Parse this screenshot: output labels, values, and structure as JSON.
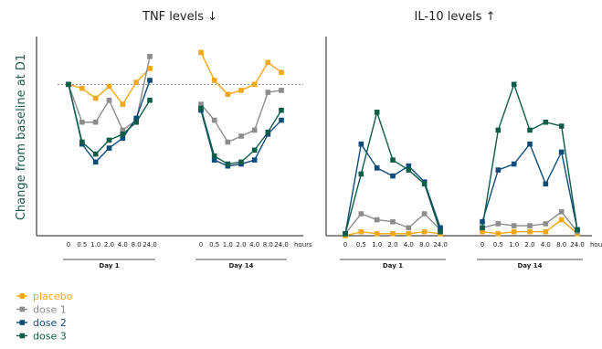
{
  "colors": {
    "placebo": "#f0a818",
    "dose_1": "#8c8c8c",
    "dose_2": "#0e4d7a",
    "dose_3": "#0f5c48",
    "axis": "#1a1a1a",
    "baseline": "#7a7a7a",
    "ylabel": "#1e5a4e"
  },
  "ylabel": "Change from baseline at D1",
  "legend": [
    {
      "key": "placebo",
      "label": "placebo"
    },
    {
      "key": "dose_1",
      "label": "dose 1"
    },
    {
      "key": "dose_2",
      "label": "dose 2"
    },
    {
      "key": "dose_3",
      "label": "dose 3"
    }
  ],
  "chart_data": [
    {
      "type": "line",
      "title": "TNF levels",
      "title_arrow": "↓",
      "x_ticks": [
        "0",
        "0.5",
        "1.0",
        "2.0",
        "4.0",
        "8.0",
        "24.0"
      ],
      "x_unit": "hours",
      "day_labels": [
        "Day 1",
        "Day 14"
      ],
      "ylim": [
        0,
        100
      ],
      "baseline": 76,
      "baseline_style": "dashed",
      "series": [
        {
          "key": "placebo",
          "name": "placebo",
          "day1": [
            76,
            74,
            69,
            75,
            66,
            77,
            84
          ],
          "day14": [
            92,
            78,
            71,
            73,
            76,
            87,
            82
          ]
        },
        {
          "key": "dose_1",
          "name": "dose 1",
          "day1": [
            76,
            57,
            57,
            68,
            53,
            58,
            90
          ],
          "day14": [
            66,
            58,
            47,
            50,
            53,
            72,
            73
          ]
        },
        {
          "key": "dose_2",
          "name": "dose 2",
          "day1": [
            76,
            46,
            37,
            44,
            49,
            59,
            78
          ],
          "day14": [
            63,
            38,
            35,
            36,
            38,
            51,
            58
          ]
        },
        {
          "key": "dose_3",
          "name": "dose 3",
          "day1": [
            76,
            47,
            41,
            48,
            51,
            57,
            68
          ],
          "day14": [
            64,
            40,
            36,
            37,
            43,
            52,
            63
          ]
        }
      ]
    },
    {
      "type": "line",
      "title": "IL-10 levels",
      "title_arrow": "↑",
      "x_ticks": [
        "0",
        "0.5",
        "1.0",
        "2.0",
        "4.0",
        "8.0",
        "24.0"
      ],
      "x_unit": "hou",
      "day_labels": [
        "Day 1",
        "Day 14"
      ],
      "ylim": [
        0,
        100
      ],
      "series": [
        {
          "key": "placebo",
          "name": "placebo",
          "day1": [
            0,
            2,
            1,
            1,
            1,
            2,
            1
          ],
          "day14": [
            2,
            1,
            2,
            2,
            2,
            8,
            1
          ]
        },
        {
          "key": "dose_1",
          "name": "dose 1",
          "day1": [
            1,
            11,
            8,
            7,
            4,
            11,
            3
          ],
          "day14": [
            4,
            6,
            5,
            5,
            6,
            12,
            2
          ]
        },
        {
          "key": "dose_2",
          "name": "dose 2",
          "day1": [
            1,
            46,
            34,
            30,
            35,
            27,
            4
          ],
          "day14": [
            7,
            33,
            36,
            46,
            26,
            42,
            3
          ]
        },
        {
          "key": "dose_3",
          "name": "dose 3",
          "day1": [
            1,
            31,
            62,
            38,
            33,
            26,
            2
          ],
          "day14": [
            4,
            53,
            76,
            53,
            57,
            55,
            3
          ]
        }
      ]
    }
  ]
}
